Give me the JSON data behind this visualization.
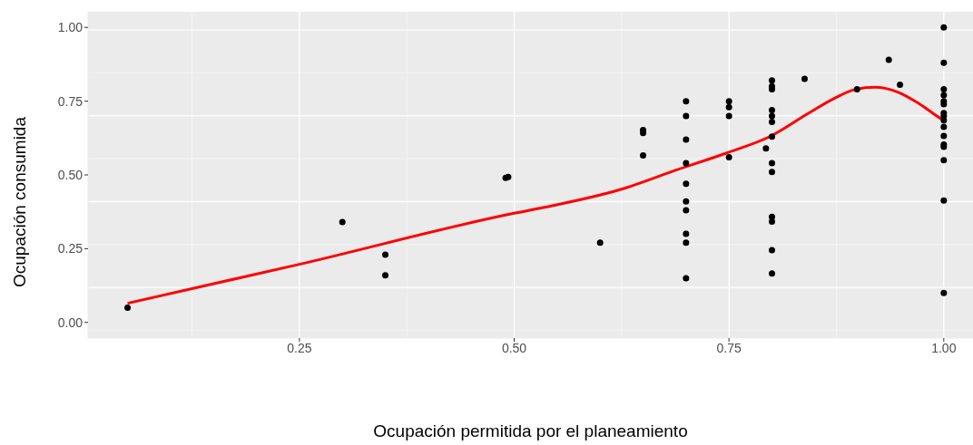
{
  "chart_data": {
    "type": "scatter",
    "xlabel": "Ocupación permitida por el planeamiento",
    "ylabel": "Ocupación consumida",
    "xlim": [
      0.004,
      1.034
    ],
    "ylim": [
      -0.053,
      1.053
    ],
    "xticks": [
      {
        "value": 0.25,
        "label": "0.25"
      },
      {
        "value": 0.5,
        "label": "0.50"
      },
      {
        "value": 0.75,
        "label": "0.75"
      },
      {
        "value": 1,
        "label": "1.00"
      }
    ],
    "yticks": [
      {
        "value": 0,
        "label": "0.00"
      },
      {
        "value": 0.25,
        "label": "0.25"
      },
      {
        "value": 0.5,
        "label": "0.50"
      },
      {
        "value": 0.75,
        "label": "0.75"
      },
      {
        "value": 1,
        "label": "1.00"
      }
    ],
    "grid": true,
    "line_style": "solid",
    "series": [
      {
        "color": "#000000",
        "marker": "circle",
        "x": [
          0.05,
          0.3,
          0.35,
          0.35,
          0.49,
          0.493,
          0.6,
          0.65,
          0.65,
          0.65,
          0.7,
          0.7,
          0.7,
          0.7,
          0.7,
          0.7,
          0.7,
          0.7,
          0.7,
          0.7,
          0.75,
          0.75,
          0.75,
          0.75,
          0.8,
          0.8,
          0.8,
          0.8,
          0.8,
          0.8,
          0.8,
          0.793,
          0.8,
          0.8,
          0.8,
          0.8,
          0.8,
          0.8,
          0.838,
          0.899,
          0.936,
          0.949,
          1,
          1,
          1,
          1,
          1,
          1,
          1,
          1,
          1,
          1,
          1,
          1,
          1,
          1,
          1,
          1
        ],
        "values": [
          0.05,
          0.34,
          0.23,
          0.16,
          0.49,
          0.493,
          0.27,
          0.652,
          0.642,
          0.566,
          0.75,
          0.7,
          0.62,
          0.54,
          0.47,
          0.41,
          0.38,
          0.3,
          0.27,
          0.15,
          0.75,
          0.73,
          0.7,
          0.56,
          0.82,
          0.8,
          0.79,
          0.72,
          0.7,
          0.68,
          0.63,
          0.59,
          0.54,
          0.51,
          0.358,
          0.342,
          0.245,
          0.166,
          0.826,
          0.79,
          0.89,
          0.806,
          1,
          0.88,
          0.79,
          0.77,
          0.75,
          0.74,
          0.71,
          0.7,
          0.685,
          0.663,
          0.632,
          0.603,
          0.595,
          0.55,
          0.413,
          0.1
        ]
      },
      {
        "type": "line",
        "color": "#ff0000",
        "marker": "none",
        "x": [
          0.05,
          0.25,
          0.5,
          0.535,
          0.623,
          0.69,
          0.746,
          0.799,
          0.842,
          0.873,
          0.897,
          0.92,
          0.947,
          0.971,
          0.997,
          1
        ],
        "values": [
          0.065,
          0.197,
          0.37,
          0.39,
          0.45,
          0.518,
          0.573,
          0.632,
          0.708,
          0.76,
          0.79,
          0.797,
          0.78,
          0.742,
          0.69,
          0.685
        ]
      }
    ]
  }
}
